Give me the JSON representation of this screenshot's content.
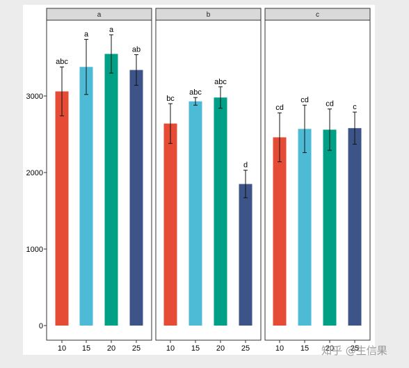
{
  "chart_data": {
    "type": "bar",
    "facets": [
      {
        "strip": "a",
        "categories": [
          "10",
          "15",
          "20",
          "25"
        ],
        "values": [
          3060,
          3380,
          3550,
          3340
        ],
        "errors": [
          320,
          360,
          250,
          200
        ],
        "letters": [
          "abc",
          "a",
          "a",
          "ab"
        ]
      },
      {
        "strip": "b",
        "categories": [
          "10",
          "15",
          "20",
          "25"
        ],
        "values": [
          2640,
          2930,
          2980,
          1850
        ],
        "errors": [
          260,
          50,
          140,
          180
        ],
        "letters": [
          "bc",
          "abc",
          "abc",
          "d"
        ]
      },
      {
        "strip": "c",
        "categories": [
          "10",
          "15",
          "20",
          "25"
        ],
        "values": [
          2460,
          2570,
          2560,
          2580
        ],
        "errors": [
          320,
          310,
          270,
          210
        ],
        "letters": [
          "cd",
          "cd",
          "cd",
          "c"
        ]
      }
    ],
    "colors": [
      "#e64b35",
      "#4dbbd5",
      "#00a087",
      "#3c5488"
    ],
    "y_ticks": [
      0,
      1000,
      2000,
      3000
    ],
    "ylim": [
      -180,
      4000
    ],
    "strip_color": "#d9d9d9",
    "xlabel": "",
    "ylabel": "",
    "title": ""
  },
  "watermark": "知乎 @生信果"
}
